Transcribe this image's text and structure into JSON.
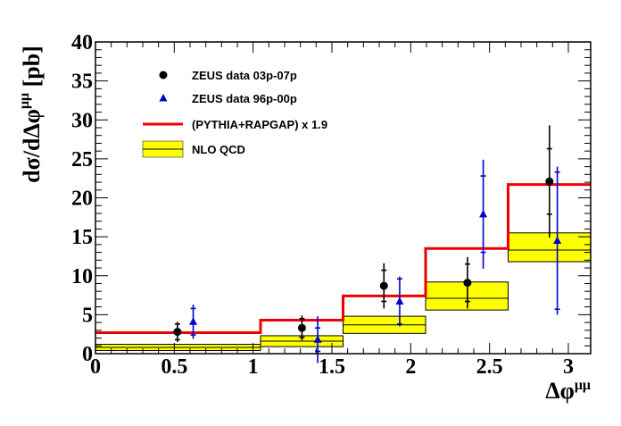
{
  "chart_data": {
    "type": "line",
    "xlabel": "Δφ",
    "xlabel_sup": "μμ",
    "ylabel": "dσ/dΔφ",
    "ylabel_sup": "μμ",
    "ylabel_unit": "[pb]",
    "xlim": [
      0,
      3.1416
    ],
    "ylim": [
      0,
      40
    ],
    "x_ticks": [
      0,
      0.5,
      1,
      1.5,
      2,
      2.5,
      3
    ],
    "x_tick_labels": [
      "0",
      "0.5",
      "1",
      "1.5",
      "2",
      "2.5",
      "3"
    ],
    "y_ticks": [
      0,
      5,
      10,
      15,
      20,
      25,
      30,
      35,
      40
    ],
    "y_tick_labels": [
      "0",
      "5",
      "10",
      "15",
      "20",
      "25",
      "30",
      "35",
      "40"
    ],
    "grid": false,
    "legend_position": "top-left",
    "bin_edges": [
      0,
      1.0472,
      1.5708,
      2.0944,
      2.618,
      3.1416
    ],
    "series": [
      {
        "name": "ZEUS data 03p-07p",
        "kind": "points",
        "marker": "circle",
        "color": "#000000",
        "x": [
          0.52,
          1.31,
          1.83,
          2.36,
          2.88
        ],
        "y": [
          2.8,
          3.3,
          8.7,
          9.1,
          22.1
        ],
        "err_stat": [
          1.0,
          1.2,
          2.0,
          2.4,
          4.2
        ],
        "err_tot": [
          1.3,
          1.6,
          2.9,
          3.3,
          7.2
        ]
      },
      {
        "name": "ZEUS data 96p-00p",
        "kind": "points",
        "marker": "triangle",
        "color": "#0000cc",
        "x": [
          0.62,
          1.41,
          1.93,
          2.46,
          2.93
        ],
        "y": [
          4.1,
          1.8,
          6.7,
          17.9,
          14.5
        ],
        "err_stat": [
          1.7,
          1.5,
          2.9,
          4.9,
          8.8
        ],
        "err_tot": [
          2.2,
          3.0,
          3.2,
          7.0,
          9.5
        ]
      },
      {
        "name": "(PYTHIA+RAPGAP) x 1.9",
        "kind": "histogram",
        "color": "#ee0000",
        "values": [
          2.7,
          4.3,
          7.4,
          13.5,
          21.7
        ]
      },
      {
        "name": "NLO QCD",
        "kind": "band",
        "color": "#ffff00",
        "central": [
          0.8,
          1.6,
          3.7,
          7.1,
          13.3
        ],
        "low": [
          0.4,
          0.9,
          2.6,
          5.6,
          11.8
        ],
        "high": [
          1.2,
          2.3,
          4.8,
          9.2,
          15.5
        ]
      }
    ]
  }
}
